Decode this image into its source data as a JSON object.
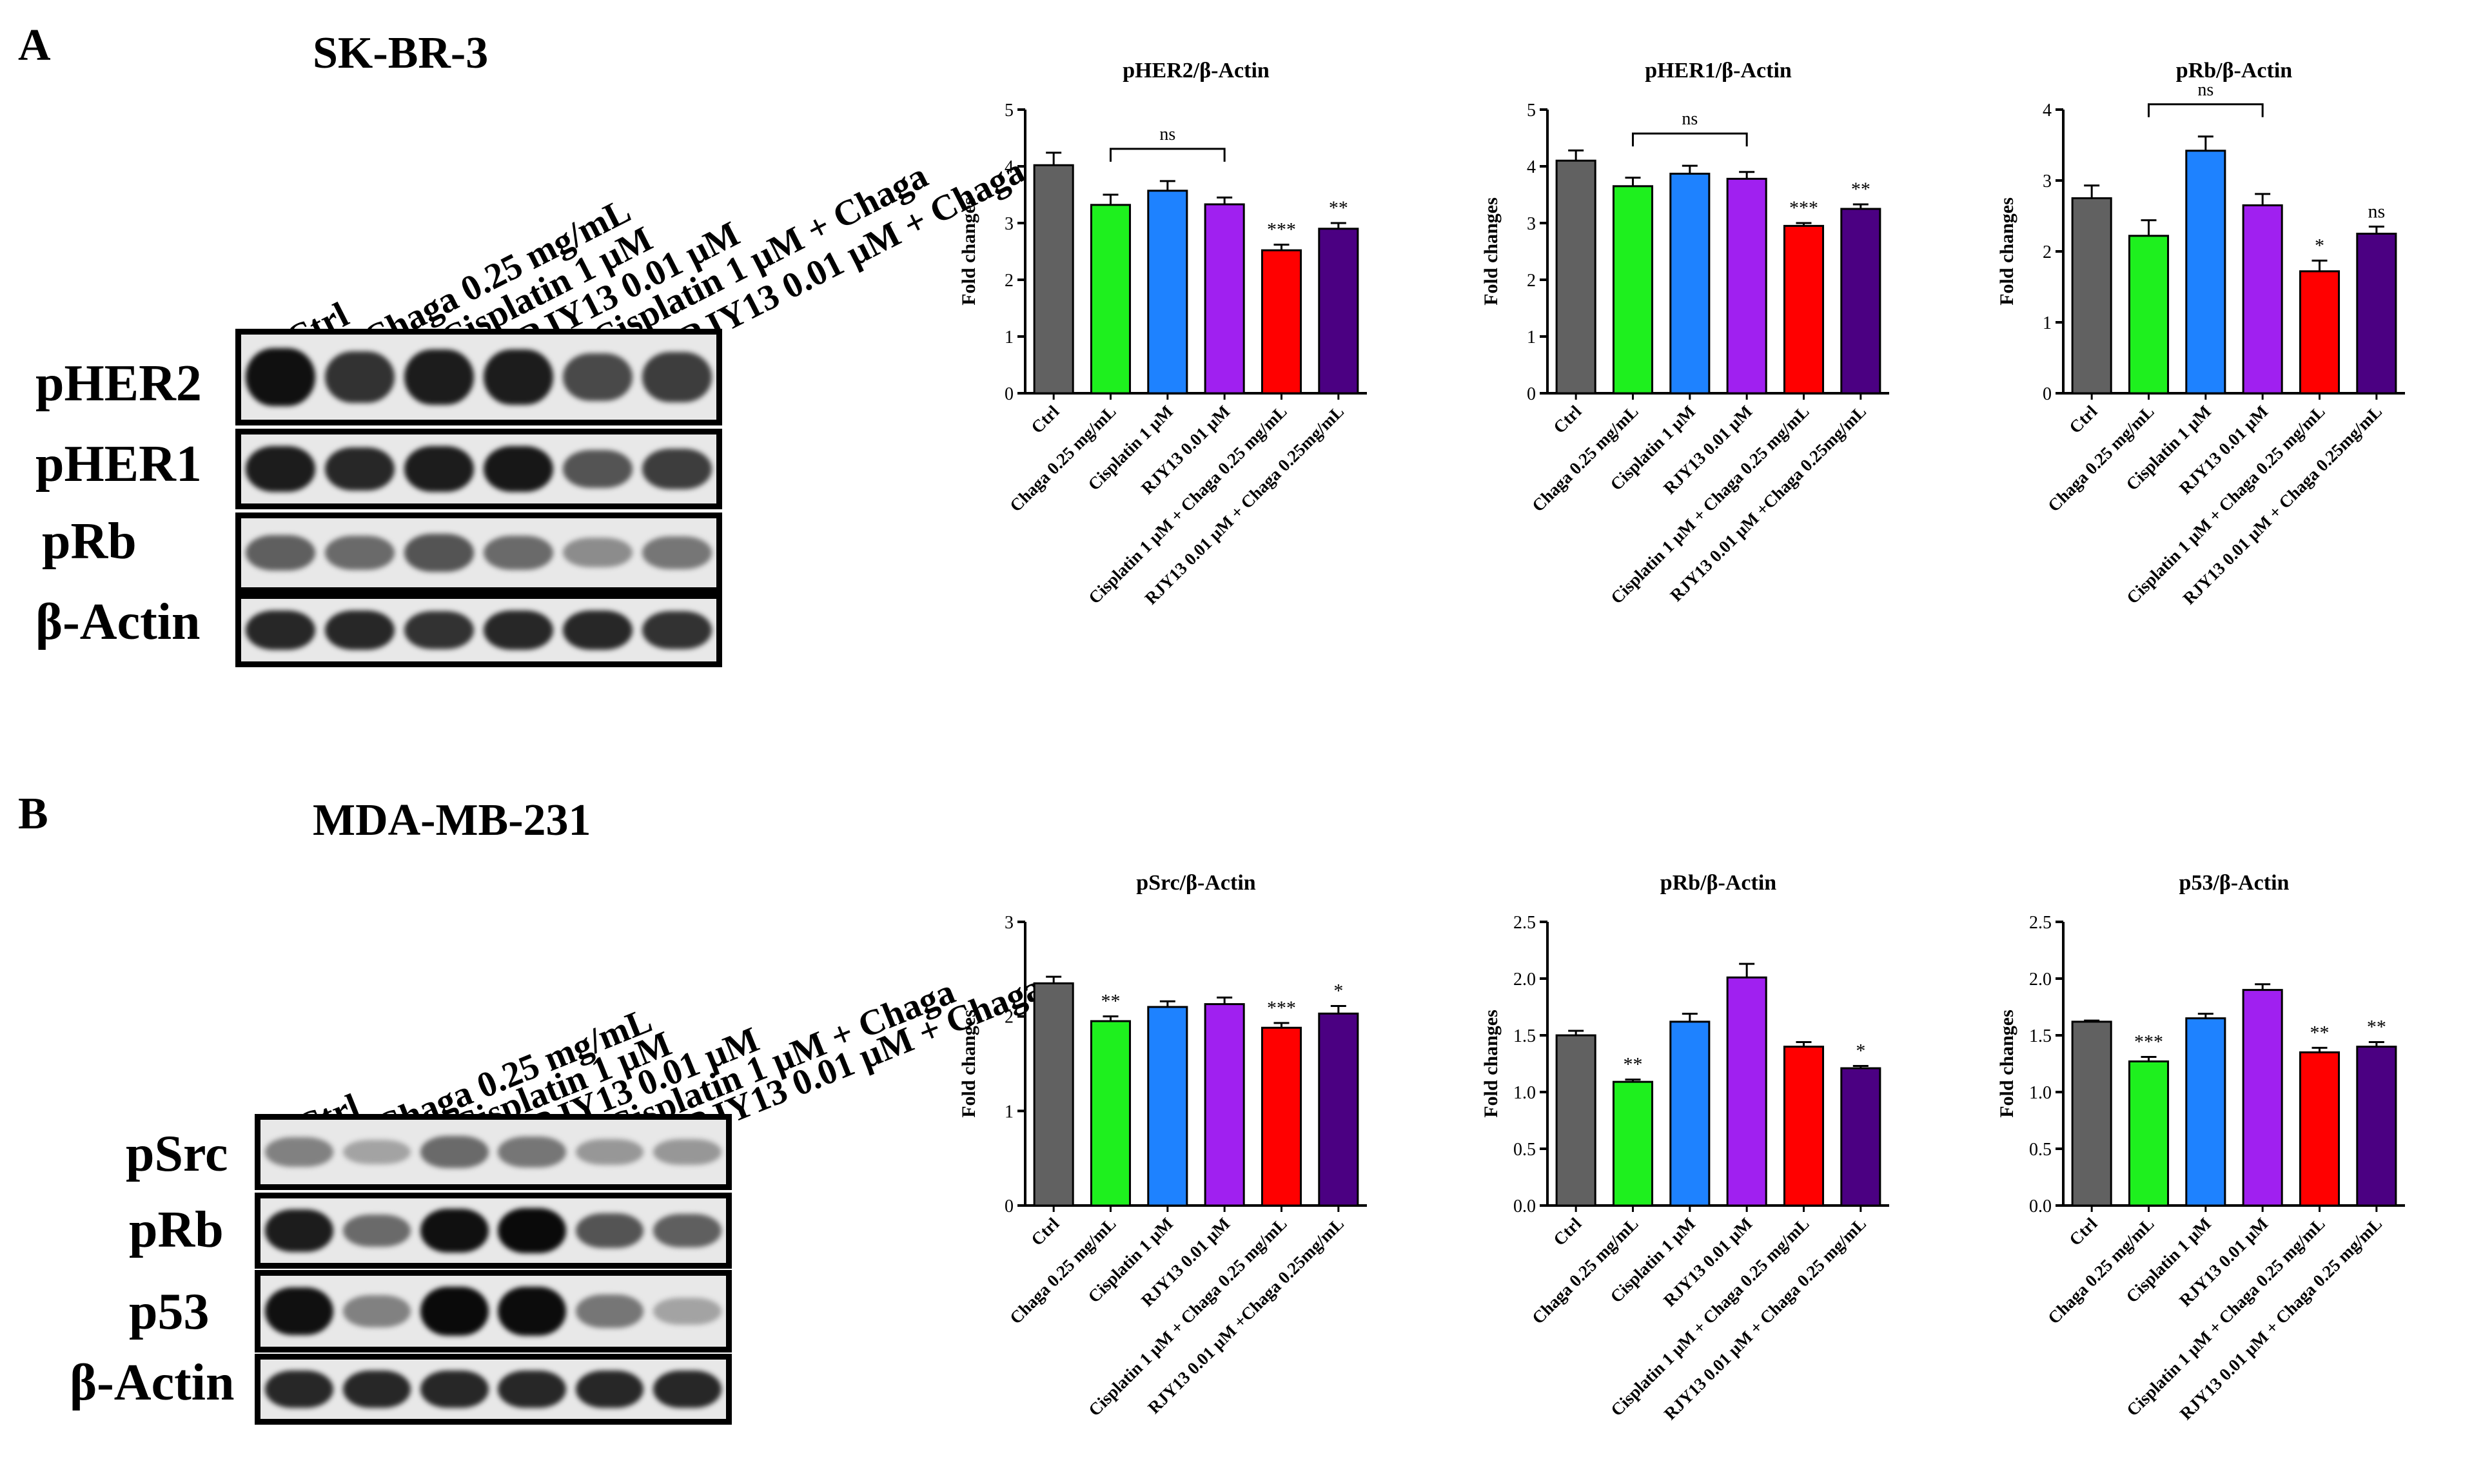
{
  "panels": [
    {
      "letter": "A",
      "cell_line": "SK-BR-3",
      "lanes": [
        "Ctrl",
        "Chaga 0.25 mg/mL",
        "Cisplatin 1 µM",
        "RJY13 0.01 µM",
        "Cisplatin 1 µM + Chaga",
        "RJY13 0.01 µM + Chaga"
      ],
      "blots": [
        {
          "label": "pHER2",
          "intensity": [
            0.95,
            0.8,
            0.9,
            0.9,
            0.7,
            0.75
          ]
        },
        {
          "label": "pHER1",
          "intensity": [
            0.9,
            0.85,
            0.9,
            0.92,
            0.65,
            0.75
          ]
        },
        {
          "label": "pRb",
          "intensity": [
            0.6,
            0.55,
            0.65,
            0.55,
            0.4,
            0.5
          ]
        },
        {
          "label": "β-Actin",
          "intensity": [
            0.85,
            0.85,
            0.8,
            0.85,
            0.85,
            0.8
          ]
        }
      ]
    },
    {
      "letter": "B",
      "cell_line": "MDA-MB-231",
      "lanes": [
        "Ctrl",
        "Chaga 0.25 mg/mL",
        "Cisplatin 1 µM",
        "RJY13 0.01 µM",
        "Cisplatin 1 µM + Chaga",
        "RJY13 0.01 µM + Chaga"
      ],
      "blots": [
        {
          "label": "pSrc",
          "intensity": [
            0.45,
            0.3,
            0.55,
            0.5,
            0.35,
            0.35
          ]
        },
        {
          "label": "pRb",
          "intensity": [
            0.9,
            0.55,
            0.95,
            0.98,
            0.65,
            0.6
          ]
        },
        {
          "label": "p53",
          "intensity": [
            0.95,
            0.45,
            0.98,
            0.97,
            0.5,
            0.3
          ]
        },
        {
          "label": "β-Actin",
          "intensity": [
            0.85,
            0.85,
            0.85,
            0.85,
            0.85,
            0.85
          ]
        }
      ]
    }
  ],
  "colors": [
    "#616161",
    "#1EF01E",
    "#1E82FF",
    "#A020F0",
    "#FF0000",
    "#4B0082"
  ],
  "chart_data": [
    {
      "type": "bar",
      "title": "pHER2/β-Actin",
      "ylabel": "Fold changes",
      "xlabel": "",
      "ylim": [
        0,
        5
      ],
      "yticks": [
        "0",
        "1",
        "2",
        "3",
        "4",
        "5"
      ],
      "categories": [
        "Ctrl",
        "Chaga 0.25 mg/mL",
        "Cisplatin 1 µM",
        "RJY13 0.01 µM",
        "Cisplatin 1 µM + Chaga 0.25 mg/mL",
        "RJY13 0.01 µM + Chaga 0.25mg/mL"
      ],
      "values": [
        4.02,
        3.32,
        3.57,
        3.33,
        2.52,
        2.9
      ],
      "errors": [
        0.22,
        0.18,
        0.17,
        0.12,
        0.1,
        0.1
      ],
      "significance": [
        "",
        "",
        "",
        "",
        "***",
        "**"
      ],
      "bracket": {
        "from": 1,
        "to": 3,
        "label": "ns"
      }
    },
    {
      "type": "bar",
      "title": "pHER1/β-Actin",
      "ylabel": "Fold changes",
      "xlabel": "",
      "ylim": [
        0,
        5
      ],
      "yticks": [
        "0",
        "1",
        "2",
        "3",
        "4",
        "5"
      ],
      "categories": [
        "Ctrl",
        "Chaga 0.25 mg/mL",
        "Cisplatin 1 µM",
        "RJY13 0.01 µM",
        "Cisplatin 1 µM + Chaga 0.25 mg/mL",
        "RJY13 0.01 µM +Chaga 0.25mg/mL"
      ],
      "values": [
        4.1,
        3.65,
        3.87,
        3.78,
        2.95,
        3.25
      ],
      "errors": [
        0.18,
        0.15,
        0.14,
        0.12,
        0.05,
        0.08
      ],
      "significance": [
        "",
        "",
        "",
        "",
        "***",
        "**"
      ],
      "bracket": {
        "from": 1,
        "to": 3,
        "label": "ns"
      }
    },
    {
      "type": "bar",
      "title": "pRb/β-Actin",
      "ylabel": "Fold changes",
      "xlabel": "",
      "ylim": [
        0,
        4
      ],
      "yticks": [
        "0",
        "1",
        "2",
        "3",
        "4"
      ],
      "categories": [
        "Ctrl",
        "Chaga 0.25 mg/mL",
        "Cisplatin 1 µM",
        "RJY13 0.01 µM",
        "Cisplatin 1 µM + Chaga 0.25 mg/mL",
        "RJY13 0.01 µM + Chaga 0.25mg/mL"
      ],
      "values": [
        2.75,
        2.22,
        3.42,
        2.65,
        1.72,
        2.25
      ],
      "errors": [
        0.18,
        0.22,
        0.2,
        0.16,
        0.15,
        0.1
      ],
      "significance": [
        "",
        "",
        "",
        "",
        "*",
        "ns"
      ],
      "bracket": {
        "from": 1,
        "to": 3,
        "label": "ns"
      }
    },
    {
      "type": "bar",
      "title": "pSrc/β-Actin",
      "ylabel": "Fold changes",
      "xlabel": "",
      "ylim": [
        0,
        3
      ],
      "yticks": [
        "0",
        "1",
        "2",
        "3"
      ],
      "categories": [
        "Ctrl",
        "Chaga 0.25 mg/mL",
        "Cisplatin 1 µM",
        "RJY13 0.01 µM",
        "Cisplatin 1 µM + Chaga 0.25 mg/mL",
        "RJY13 0.01 µM +Chaga 0.25mg/mL"
      ],
      "values": [
        2.35,
        1.95,
        2.1,
        2.13,
        1.88,
        2.03
      ],
      "errors": [
        0.07,
        0.05,
        0.06,
        0.07,
        0.05,
        0.08
      ],
      "significance": [
        "",
        "**",
        "",
        "",
        "***",
        "*"
      ],
      "bracket": null
    },
    {
      "type": "bar",
      "title": "pRb/β-Actin",
      "ylabel": "Fold changes",
      "xlabel": "",
      "ylim": [
        0,
        2.5
      ],
      "yticks": [
        "0.0",
        "0.5",
        "1.0",
        "1.5",
        "2.0",
        "2.5"
      ],
      "categories": [
        "Ctrl",
        "Chaga 0.25 mg/mL",
        "Cisplatin 1 µM",
        "RJY13 0.01 µM",
        "Cisplatin 1 µM + Chaga 0.25 mg/mL",
        "RJY13 0.01 µM + Chaga 0.25 mg/mL"
      ],
      "values": [
        1.5,
        1.09,
        1.62,
        2.01,
        1.4,
        1.21
      ],
      "errors": [
        0.04,
        0.02,
        0.07,
        0.12,
        0.04,
        0.02
      ],
      "significance": [
        "",
        "**",
        "",
        "",
        "",
        "*"
      ],
      "bracket": null
    },
    {
      "type": "bar",
      "title": "p53/β-Actin",
      "ylabel": "Fold changes",
      "xlabel": "",
      "ylim": [
        0,
        2.5
      ],
      "yticks": [
        "0.0",
        "0.5",
        "1.0",
        "1.5",
        "2.0",
        "2.5"
      ],
      "categories": [
        "Ctrl",
        "Chaga 0.25 mg/mL",
        "Cisplatin 1 µM",
        "RJY13 0.01 µM",
        "Cisplatin 1 µM + Chaga 0.25 mg/mL",
        "RJY13 0.01 µM + Chaga 0.25 mg/mL"
      ],
      "values": [
        1.62,
        1.27,
        1.65,
        1.9,
        1.35,
        1.4
      ],
      "errors": [
        0.01,
        0.04,
        0.04,
        0.05,
        0.04,
        0.04
      ],
      "significance": [
        "",
        "***",
        "",
        "",
        "**",
        "**"
      ],
      "bracket": null
    }
  ]
}
